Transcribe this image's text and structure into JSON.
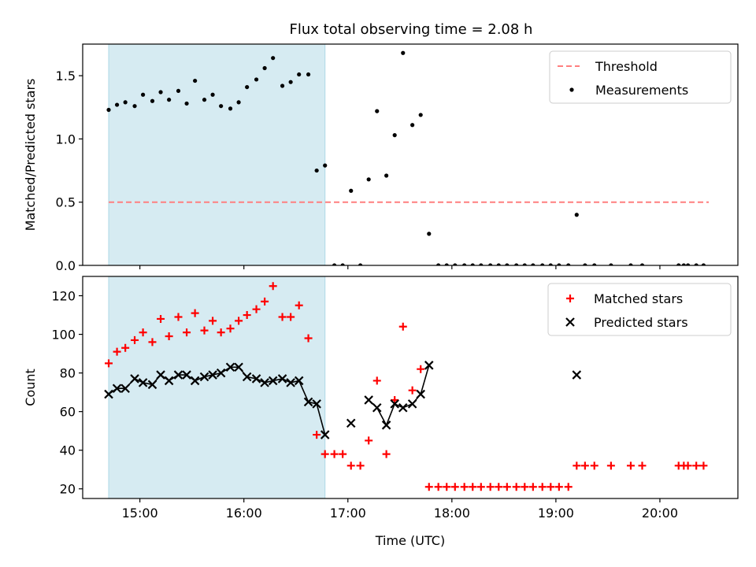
{
  "figure_title": "Flux total observing time = 2.08 h",
  "colors": {
    "threshold": "#ff7f7f",
    "measurement": "#000000",
    "matched": "#ff0000",
    "predicted": "#000000",
    "highlight": "#add8e6"
  },
  "chart_data": [
    {
      "type": "scatter",
      "name": "ratio-panel",
      "ylabel": "Matched/Predicted stars",
      "xlabel": "",
      "xlim": [
        14.45,
        20.75
      ],
      "ylim": [
        0,
        1.75
      ],
      "yticks": [
        0.0,
        0.5,
        1.0,
        1.5
      ],
      "ytick_labels": [
        "0.0",
        "0.5",
        "1.0",
        "1.5"
      ],
      "xticks": [
        15,
        16,
        17,
        18,
        19,
        20
      ],
      "highlight_span": [
        14.7,
        16.78
      ],
      "threshold": {
        "label": "Threshold",
        "value": 0.5,
        "x_range": [
          14.7,
          20.47
        ]
      },
      "legend": {
        "position": "top-right",
        "entries": [
          "Threshold",
          "Measurements"
        ]
      },
      "series": [
        {
          "name": "Measurements",
          "x": [
            14.7,
            14.78,
            14.86,
            14.95,
            15.03,
            15.12,
            15.2,
            15.28,
            15.37,
            15.45,
            15.53,
            15.62,
            15.7,
            15.78,
            15.87,
            15.95,
            16.03,
            16.12,
            16.2,
            16.28,
            16.37,
            16.45,
            16.53,
            16.62,
            16.7,
            16.78,
            16.87,
            16.95,
            17.03,
            17.12,
            17.2,
            17.28,
            17.37,
            17.45,
            17.53,
            17.62,
            17.7,
            17.78,
            17.87,
            17.95,
            18.03,
            18.12,
            18.2,
            18.28,
            18.37,
            18.45,
            18.53,
            18.62,
            18.7,
            18.78,
            18.87,
            18.95,
            19.03,
            19.12,
            19.2,
            19.28,
            19.37,
            19.53,
            19.72,
            19.83,
            20.18,
            20.23,
            20.27,
            20.35,
            20.42
          ],
          "y": [
            1.23,
            1.27,
            1.29,
            1.26,
            1.35,
            1.3,
            1.37,
            1.31,
            1.38,
            1.28,
            1.46,
            1.31,
            1.35,
            1.26,
            1.24,
            1.29,
            1.41,
            1.47,
            1.56,
            1.64,
            1.42,
            1.45,
            1.51,
            1.51,
            0.75,
            0.79,
            0,
            0,
            0.59,
            0,
            0.68,
            1.22,
            0.71,
            1.03,
            1.68,
            1.11,
            1.19,
            0.25,
            0,
            0,
            0,
            0,
            0,
            0,
            0,
            0,
            0,
            0,
            0,
            0,
            0,
            0,
            0,
            0,
            0.4,
            0,
            0,
            0,
            0,
            0,
            0,
            0,
            0,
            0,
            0
          ]
        }
      ]
    },
    {
      "type": "scatter",
      "name": "count-panel",
      "ylabel": "Count",
      "xlabel": "Time (UTC)",
      "xlim": [
        14.45,
        20.75
      ],
      "ylim": [
        15,
        130
      ],
      "yticks": [
        20,
        40,
        60,
        80,
        100,
        120
      ],
      "ytick_labels": [
        "20",
        "40",
        "60",
        "80",
        "100",
        "120"
      ],
      "xticks": [
        15,
        16,
        17,
        18,
        19,
        20
      ],
      "xtick_labels": [
        "15:00",
        "16:00",
        "17:00",
        "18:00",
        "19:00",
        "20:00"
      ],
      "highlight_span": [
        14.7,
        16.78
      ],
      "legend": {
        "position": "top-right",
        "entries": [
          "Matched stars",
          "Predicted stars"
        ]
      },
      "series": [
        {
          "name": "Matched stars",
          "marker": "plus",
          "x": [
            14.7,
            14.78,
            14.86,
            14.95,
            15.03,
            15.12,
            15.2,
            15.28,
            15.37,
            15.45,
            15.53,
            15.62,
            15.7,
            15.78,
            15.87,
            15.95,
            16.03,
            16.12,
            16.2,
            16.28,
            16.37,
            16.45,
            16.53,
            16.62,
            16.7,
            16.78,
            16.87,
            16.95,
            17.03,
            17.12,
            17.2,
            17.28,
            17.37,
            17.45,
            17.53,
            17.62,
            17.7,
            17.78,
            17.87,
            17.95,
            18.03,
            18.12,
            18.2,
            18.28,
            18.37,
            18.45,
            18.53,
            18.62,
            18.7,
            18.78,
            18.87,
            18.95,
            19.03,
            19.12,
            19.2,
            19.28,
            19.37,
            19.53,
            19.72,
            19.83,
            20.18,
            20.23,
            20.27,
            20.35,
            20.42
          ],
          "y": [
            85,
            91,
            93,
            97,
            101,
            96,
            108,
            99,
            109,
            101,
            111,
            102,
            107,
            101,
            103,
            107,
            110,
            113,
            117,
            125,
            109,
            109,
            115,
            98,
            48,
            38,
            38,
            38,
            32,
            32,
            45,
            76,
            38,
            66,
            104,
            71,
            82,
            21,
            21,
            21,
            21,
            21,
            21,
            21,
            21,
            21,
            21,
            21,
            21,
            21,
            21,
            21,
            21,
            21,
            32,
            32,
            32,
            32,
            32,
            32,
            32,
            32,
            32,
            32,
            32
          ]
        },
        {
          "name": "Predicted stars",
          "marker": "x",
          "connect_segments": [
            [
              14.7,
              16.78
            ],
            [
              17.2,
              17.78
            ]
          ],
          "x": [
            14.7,
            14.78,
            14.86,
            14.95,
            15.03,
            15.12,
            15.2,
            15.28,
            15.37,
            15.45,
            15.53,
            15.62,
            15.7,
            15.78,
            15.87,
            15.95,
            16.03,
            16.12,
            16.2,
            16.28,
            16.37,
            16.45,
            16.53,
            16.62,
            16.7,
            16.78,
            17.03,
            17.2,
            17.28,
            17.37,
            17.45,
            17.53,
            17.62,
            17.7,
            17.78,
            19.2
          ],
          "y": [
            69,
            72,
            72,
            77,
            75,
            74,
            79,
            76,
            79,
            79,
            76,
            78,
            79,
            80,
            83,
            83,
            78,
            77,
            75,
            76,
            77,
            75,
            76,
            65,
            64,
            48,
            54,
            66,
            62,
            53,
            64,
            62,
            64,
            69,
            84,
            79
          ]
        }
      ]
    }
  ]
}
